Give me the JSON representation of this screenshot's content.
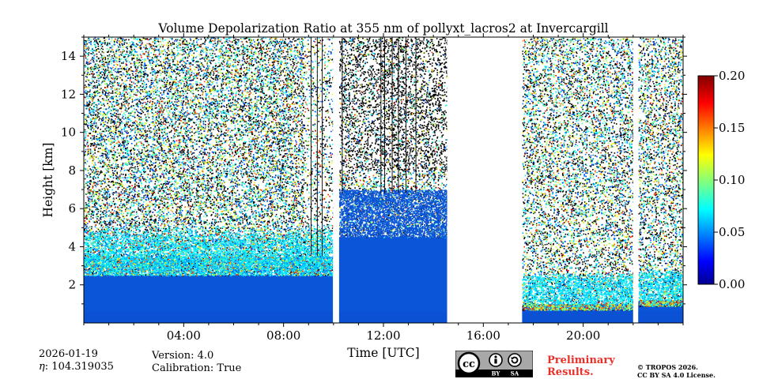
{
  "chart_data": {
    "type": "heatmap",
    "title": "Volume Depolarization Ratio at 355 nm of pollyxt_lacros2 at Invercargill",
    "xlabel": "Time [UTC]",
    "ylabel": "Height [km]",
    "xlim": [
      0,
      24
    ],
    "ylim": [
      0,
      15
    ],
    "x_ticks": [
      4,
      8,
      12,
      16,
      20
    ],
    "x_tick_labels": [
      "04:00",
      "08:00",
      "12:00",
      "16:00",
      "20:00"
    ],
    "y_ticks": [
      2,
      4,
      6,
      8,
      10,
      12,
      14
    ],
    "y_tick_labels": [
      "2",
      "4",
      "6",
      "8",
      "10",
      "12",
      "14"
    ],
    "colorbar": {
      "range": [
        0.0,
        0.2
      ],
      "ticks": [
        0.0,
        0.05,
        0.1,
        0.15,
        0.2
      ],
      "tick_labels": [
        "0.00",
        "0.05",
        "0.10",
        "0.15",
        "0.20"
      ],
      "colormap": "jet"
    },
    "data_gaps_hours": [
      [
        9.98,
        10.22
      ],
      [
        14.55,
        17.55
      ],
      [
        22.0,
        22.2
      ]
    ],
    "segments": [
      {
        "start_hour": 0.0,
        "end_hour": 9.98,
        "dense_layer_top_km": 2.5,
        "noise_from_km": 3.5
      },
      {
        "start_hour": 10.22,
        "end_hour": 14.55,
        "dense_layer_top_km": 4.5,
        "noise_from_km": 7.0
      },
      {
        "start_hour": 17.55,
        "end_hour": 22.0,
        "dense_layer_top_km": 0.7,
        "noise_from_km": 1.0
      },
      {
        "start_hour": 22.2,
        "end_hour": 24.0,
        "dense_layer_top_km": 0.9,
        "noise_from_km": 1.2
      }
    ]
  },
  "footer": {
    "date": "2026-01-19",
    "eta": ": 104.319035",
    "eta_symbol": "η",
    "version": "Version: 4.0",
    "calibration": "Calibration: True",
    "preliminary_line1": "Preliminary",
    "preliminary_line2": "Results.",
    "copyright_line1": "© TROPOS 2026.",
    "copyright_line2": "CC BY SA 4.0 License.",
    "license_by": "BY",
    "license_sa": "SA"
  },
  "colors": {
    "background": "#ffffff",
    "low_value_blue": "#0a55d8",
    "noise_black": "#000000",
    "prelim_red": "#e8302a",
    "badge_gray": "#a8a8a8"
  }
}
